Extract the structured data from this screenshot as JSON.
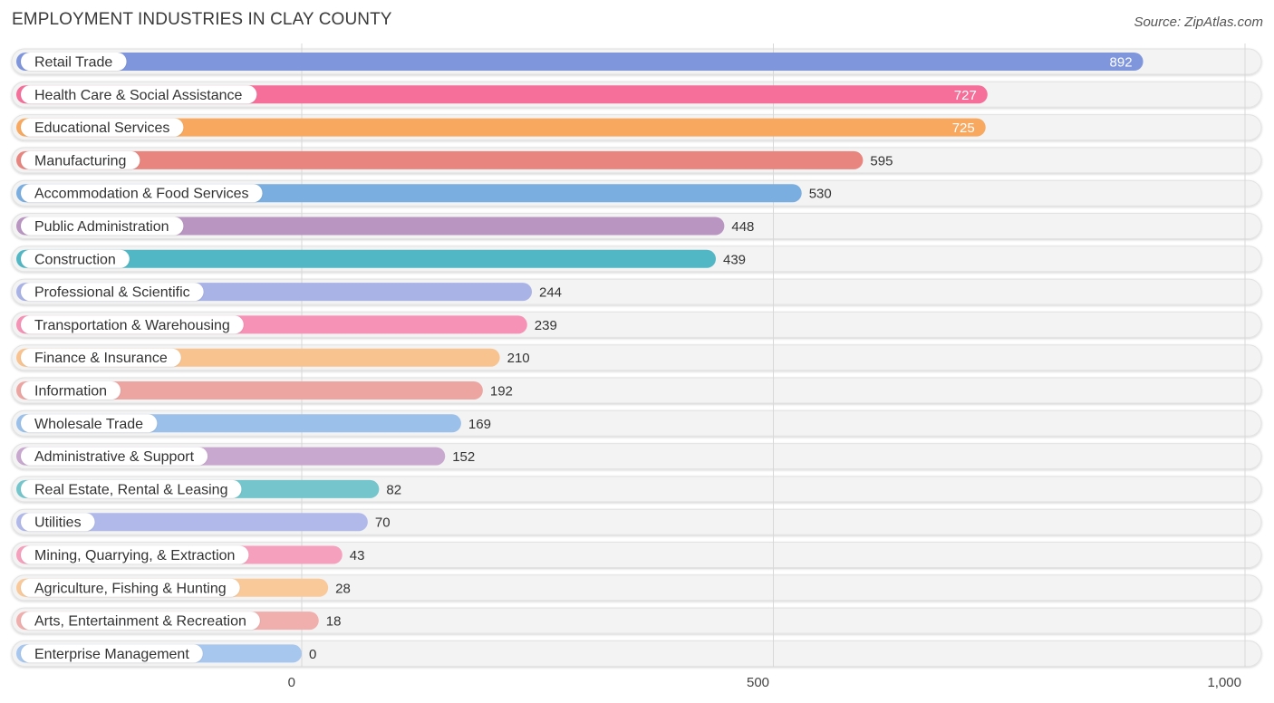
{
  "header": {
    "title": "EMPLOYMENT INDUSTRIES IN CLAY COUNTY",
    "source": "Source: ZipAtlas.com"
  },
  "chart_data": {
    "type": "bar",
    "orientation": "horizontal",
    "title": "EMPLOYMENT INDUSTRIES IN CLAY COUNTY",
    "xlabel": "",
    "ylabel": "",
    "xlim": [
      0,
      1000
    ],
    "grid": true,
    "ticks": [
      {
        "value": 0,
        "label": "0"
      },
      {
        "value": 500,
        "label": "500"
      },
      {
        "value": 1000,
        "label": "1,000"
      }
    ],
    "categories": [
      "Retail Trade",
      "Health Care & Social Assistance",
      "Educational Services",
      "Manufacturing",
      "Accommodation & Food Services",
      "Public Administration",
      "Construction",
      "Professional & Scientific",
      "Transportation & Warehousing",
      "Finance & Insurance",
      "Information",
      "Wholesale Trade",
      "Administrative & Support",
      "Real Estate, Rental & Leasing",
      "Utilities",
      "Mining, Quarrying, & Extraction",
      "Agriculture, Fishing & Hunting",
      "Arts, Entertainment & Recreation",
      "Enterprise Management"
    ],
    "values": [
      892,
      727,
      725,
      595,
      530,
      448,
      439,
      244,
      239,
      210,
      192,
      169,
      152,
      82,
      70,
      43,
      28,
      18,
      0
    ],
    "value_labels": [
      "892",
      "727",
      "725",
      "595",
      "530",
      "448",
      "439",
      "244",
      "239",
      "210",
      "192",
      "169",
      "152",
      "82",
      "70",
      "43",
      "28",
      "18",
      "0"
    ],
    "colors": [
      "#7f96dd",
      "#f56f9a",
      "#f8a95f",
      "#e8857f",
      "#7aaee0",
      "#b995c2",
      "#52b7c4",
      "#a9b3e6",
      "#f592b5",
      "#f9c38f",
      "#eda5a1",
      "#9bc0ea",
      "#c9a8cf",
      "#74c6cc",
      "#b1b9ea",
      "#f5a0bd",
      "#f9c99a",
      "#f0aeac",
      "#a7c7ef"
    ]
  }
}
